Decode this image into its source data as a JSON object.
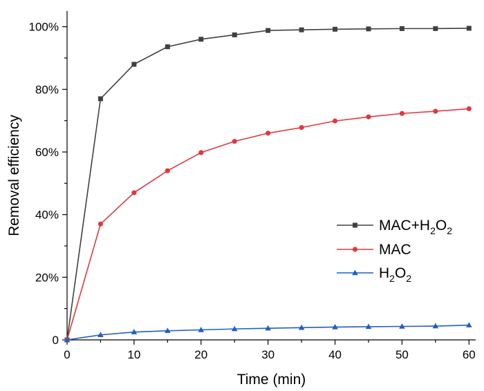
{
  "chart_data": {
    "type": "line",
    "xlabel": "Time (min)",
    "ylabel": "Removal efficiency",
    "xlim": [
      0,
      61
    ],
    "ylim": [
      0,
      105
    ],
    "x_ticks": [
      0,
      10,
      20,
      30,
      40,
      50,
      60
    ],
    "y_ticks": [
      {
        "value": 0,
        "label": "0"
      },
      {
        "value": 20,
        "label": "20%"
      },
      {
        "value": 40,
        "label": "40%"
      },
      {
        "value": 60,
        "label": "60%"
      },
      {
        "value": 80,
        "label": "80%"
      },
      {
        "value": 100,
        "label": "100%"
      }
    ],
    "grid": false,
    "legend_position": "right-middle",
    "x": [
      0,
      5,
      10,
      15,
      20,
      25,
      30,
      35,
      40,
      45,
      50,
      55,
      60
    ],
    "series": [
      {
        "name": "MAC+H2O2",
        "legend_parts": [
          "MAC+H",
          "2",
          "O",
          "2"
        ],
        "color": "#404040",
        "marker": "square",
        "values": [
          0,
          77,
          88,
          93.6,
          96,
          97.4,
          98.8,
          99,
          99.2,
          99.3,
          99.4,
          99.4,
          99.5
        ]
      },
      {
        "name": "MAC",
        "legend_parts": [
          "MAC"
        ],
        "color": "#e0393e",
        "marker": "circle",
        "values": [
          0,
          37,
          47,
          54,
          59.8,
          63.4,
          66,
          67.8,
          69.9,
          71.2,
          72.3,
          73,
          73.8
        ]
      },
      {
        "name": "H2O2",
        "legend_parts": [
          "H",
          "2",
          "O",
          "2"
        ],
        "color": "#1f5fc4",
        "marker": "triangle",
        "values": [
          0,
          1.6,
          2.5,
          2.9,
          3.2,
          3.5,
          3.7,
          3.9,
          4.1,
          4.2,
          4.3,
          4.4,
          4.7
        ]
      }
    ]
  }
}
